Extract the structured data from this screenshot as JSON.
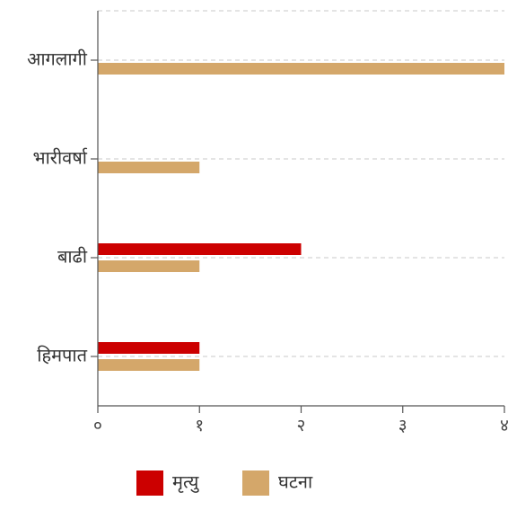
{
  "chart_data": {
    "type": "bar",
    "orientation": "horizontal",
    "categories": [
      "आगलागी",
      "भारीवर्षा",
      "बाढी",
      "हिमपात"
    ],
    "series": [
      {
        "name": "मृत्यु",
        "values": [
          0,
          0,
          2,
          1
        ],
        "color": "#cc0000"
      },
      {
        "name": "घटना",
        "values": [
          4,
          1,
          1,
          1
        ],
        "color": "#d4a76a"
      }
    ],
    "xlim": [
      0,
      4
    ],
    "xticks": [
      0,
      1,
      2,
      3,
      4
    ],
    "xtick_labels": [
      "०",
      "१",
      "२",
      "३",
      "४"
    ],
    "grid": true,
    "legend": "bottom"
  }
}
